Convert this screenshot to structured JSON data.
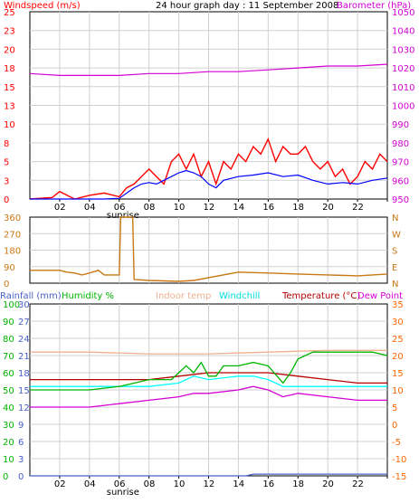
{
  "page": {
    "title": "24 hour graph day : 11 September 2008"
  },
  "colors": {
    "windspeed": "#ff0000",
    "windavg": "#0000ff",
    "barometer": "#d400d4",
    "direction": "#c87814",
    "rainfall": "#4a60c8",
    "humidity": "#00b400",
    "indoor": "#f0b090",
    "windchill": "#00ffff",
    "temperature": "#b40000",
    "dewpoint": "#d400d4",
    "temp_axis": "#ff6600",
    "grid": "#d0d0d0"
  },
  "chart_data": [
    {
      "type": "line",
      "labels": {
        "left": "Windspeed (m/s)",
        "right": "Barometer (hPa)"
      },
      "left_ticks": [
        "25",
        "23",
        "20",
        "18",
        "15",
        "13",
        "10",
        "8",
        "5",
        "3",
        "0"
      ],
      "right_ticks": [
        "1050",
        "1040",
        "1030",
        "1020",
        "1010",
        "1000",
        "990",
        "980",
        "970",
        "960",
        "950"
      ],
      "ylim_left": [
        0,
        25
      ],
      "ylim_right": [
        950,
        1050
      ],
      "x_ticks": [
        "02",
        "04",
        "06",
        "08",
        "10",
        "12",
        "14",
        "16",
        "18",
        "20",
        "22",
        ""
      ],
      "x_sublabel": "sunrise",
      "series": [
        {
          "role": "barometer",
          "axis": "right",
          "hours": [
            0,
            2,
            4,
            6,
            8,
            10,
            12,
            14,
            16,
            18,
            20,
            22,
            24
          ],
          "values": [
            1017,
            1016,
            1016,
            1016,
            1017,
            1017,
            1018,
            1018,
            1019,
            1020,
            1021,
            1021,
            1022
          ]
        },
        {
          "role": "gust",
          "axis": "left",
          "hours": [
            0,
            1.5,
            2,
            3,
            4,
            5,
            6,
            6.5,
            7,
            7.5,
            8,
            8.5,
            9,
            9.5,
            10,
            10.5,
            11,
            11.5,
            12,
            12.5,
            13,
            13.5,
            14,
            14.5,
            15,
            15.5,
            16,
            16.5,
            17,
            17.5,
            18,
            18.5,
            19,
            19.5,
            20,
            20.5,
            21,
            21.5,
            22,
            22.5,
            23,
            23.5,
            24
          ],
          "values": [
            0,
            0.2,
            1,
            0,
            0.5,
            0.8,
            0.3,
            1.5,
            2,
            3,
            4,
            3,
            2,
            5,
            6,
            4,
            6,
            3,
            5,
            2,
            5,
            4,
            6,
            5,
            7,
            6,
            8,
            5,
            7,
            6,
            6,
            7,
            5,
            4,
            5,
            3,
            4,
            2,
            3,
            5,
            4,
            6,
            5
          ]
        },
        {
          "role": "average",
          "axis": "left",
          "hours": [
            0,
            2,
            4,
            5,
            6,
            6.5,
            7,
            7.5,
            8,
            8.5,
            9,
            9.5,
            10,
            10.5,
            11,
            11.5,
            12,
            12.5,
            13,
            14,
            15,
            16,
            17,
            18,
            19,
            20,
            21,
            22,
            23,
            24
          ],
          "values": [
            0,
            0,
            0,
            0,
            0.1,
            0.8,
            1.5,
            2,
            2.2,
            2,
            2.5,
            3,
            3.5,
            3.8,
            3.5,
            3,
            2,
            1.5,
            2.5,
            3,
            3.2,
            3.5,
            3,
            3.2,
            2.5,
            2,
            2.2,
            2,
            2.5,
            2.8
          ]
        }
      ]
    },
    {
      "type": "line",
      "labels": {
        "left": "",
        "right": ""
      },
      "left_ticks": [
        "360",
        "270",
        "180",
        "90",
        "0"
      ],
      "right_ticks": [
        "N",
        "W",
        "S",
        "E",
        "N"
      ],
      "ylim_left": [
        0,
        360
      ],
      "x_ticks": [],
      "series": [
        {
          "role": "direction",
          "axis": "left",
          "hours": [
            0,
            2,
            2.5,
            3,
            3.5,
            4,
            4.6,
            5,
            6,
            6.1,
            6.9,
            7,
            8,
            10,
            11,
            12,
            14,
            16,
            18,
            20,
            22,
            24
          ],
          "values": [
            70,
            70,
            60,
            55,
            45,
            55,
            70,
            45,
            45,
            360,
            360,
            20,
            15,
            10,
            15,
            30,
            60,
            55,
            50,
            45,
            40,
            50
          ]
        }
      ]
    },
    {
      "type": "line",
      "labels": {
        "rainfall": "Rainfall (mm)",
        "humidity": "Humidity %",
        "indoor": "Indoor temp",
        "windchill": "Windchill",
        "temperature": "Temperature (°C)",
        "dewpoint": "Dew Point"
      },
      "humidity_ticks": [
        "100",
        "90",
        "80",
        "70",
        "60",
        "50",
        "40",
        "30",
        "20",
        "10",
        "0"
      ],
      "rainfall_ticks": [
        "30",
        "27",
        "24",
        "21",
        "18",
        "15",
        "12",
        "9",
        "6",
        "3",
        "0"
      ],
      "temp_ticks": [
        "35",
        "30",
        "25",
        "20",
        "15",
        "10",
        "5",
        "0",
        "-5",
        "-10",
        "-15"
      ],
      "ylim_temp": [
        -15,
        35
      ],
      "x_ticks": [
        "02",
        "04",
        "06",
        "08",
        "10",
        "12",
        "14",
        "16",
        "18",
        "20",
        "22",
        ""
      ],
      "x_sublabel": "sunrise",
      "series": [
        {
          "role": "indoor",
          "hours": [
            0,
            4,
            8,
            12,
            16,
            20,
            24
          ],
          "values": [
            21,
            21,
            20.5,
            20.5,
            21,
            21.5,
            21.5
          ]
        },
        {
          "role": "temperature",
          "hours": [
            0,
            2,
            4,
            6,
            8,
            10,
            12,
            14,
            16,
            18,
            20,
            22,
            24
          ],
          "values": [
            13,
            13,
            13,
            13,
            13,
            14,
            15,
            15,
            15,
            14,
            13,
            12,
            12
          ]
        },
        {
          "role": "dewpoint",
          "hours": [
            0,
            2,
            4,
            6,
            8,
            10,
            11,
            12,
            14,
            15,
            16,
            17,
            18,
            20,
            22,
            24
          ],
          "values": [
            5,
            5,
            5,
            6,
            7,
            8,
            9,
            9,
            10,
            11,
            10,
            8,
            9,
            8,
            7,
            7
          ]
        },
        {
          "role": "windchill",
          "hours": [
            0,
            6,
            8,
            10,
            11,
            12,
            14,
            15,
            16,
            17,
            18,
            20,
            22,
            24
          ],
          "values": [
            11,
            11,
            11,
            12,
            14,
            13,
            14,
            14,
            13,
            11,
            11,
            11,
            11,
            11
          ]
        },
        {
          "role": "humidity_as_temp",
          "hours": [
            0,
            2,
            4,
            6,
            8,
            9.5,
            10,
            10.5,
            11,
            11.5,
            12,
            12.5,
            13,
            14,
            15,
            16,
            17,
            17.5,
            18,
            19,
            20,
            22,
            23,
            24
          ],
          "values": [
            10,
            10,
            10,
            11,
            13,
            13,
            15,
            17,
            15,
            18,
            14,
            14,
            17,
            17,
            18,
            17,
            12,
            15,
            19,
            21,
            21,
            21,
            21,
            20
          ]
        },
        {
          "role": "rainfall",
          "hours": [
            0,
            14.5,
            15,
            24
          ],
          "values": [
            0,
            0,
            0.3,
            0.3
          ]
        }
      ]
    }
  ]
}
